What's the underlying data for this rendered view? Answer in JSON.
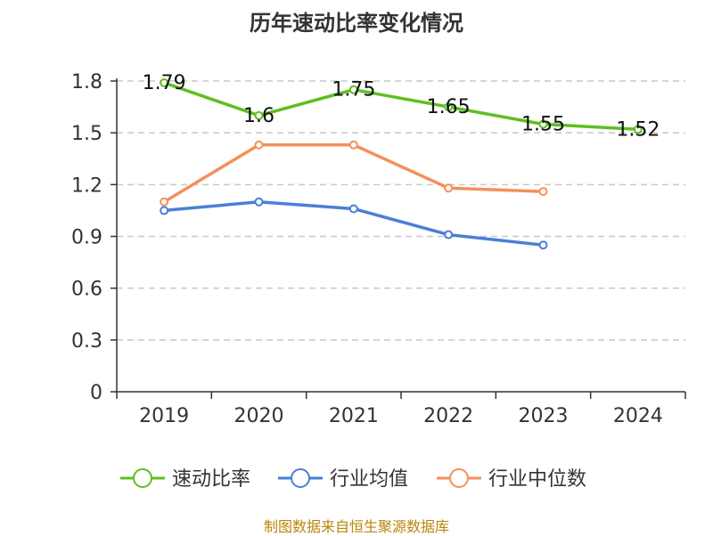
{
  "chart_data": {
    "type": "line",
    "title": "历年速动比率变化情况",
    "categories": [
      "2019",
      "2020",
      "2021",
      "2022",
      "2023",
      "2024"
    ],
    "ylim": [
      0,
      1.8
    ],
    "yticks": [
      "0",
      "0.3",
      "0.6",
      "0.9",
      "1.2",
      "1.5",
      "1.8"
    ],
    "grid": true,
    "legend_position": "bottom",
    "series": [
      {
        "name": "速动比率",
        "color": "#5fbf1f",
        "values": [
          1.79,
          1.6,
          1.75,
          1.65,
          1.55,
          1.52
        ],
        "data_labels": [
          "1.79",
          "1.6",
          "1.75",
          "1.65",
          "1.55",
          "1.52"
        ]
      },
      {
        "name": "行业均值",
        "color": "#4a7fd6",
        "values": [
          1.05,
          1.1,
          1.06,
          0.91,
          0.85,
          null
        ]
      },
      {
        "name": "行业中位数",
        "color": "#f4905a",
        "values": [
          1.1,
          1.43,
          1.43,
          1.18,
          1.16,
          null
        ]
      }
    ]
  },
  "source_note": "制图数据来自恒生聚源数据库"
}
